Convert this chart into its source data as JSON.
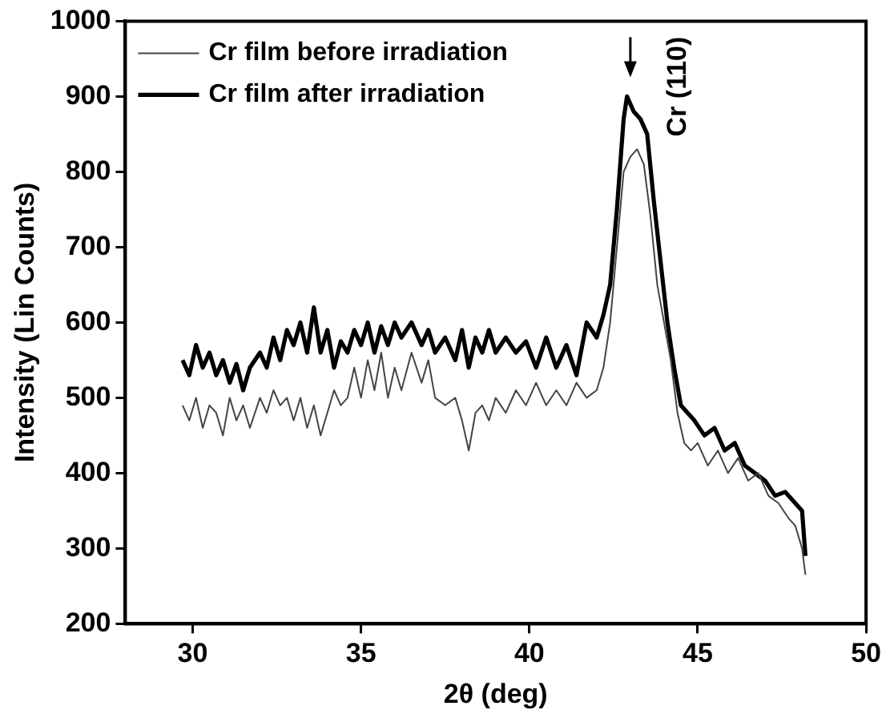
{
  "chart_data": {
    "type": "line",
    "xlabel": "2θ (deg)",
    "ylabel": "Intensity (Lin Counts)",
    "xlim": [
      28,
      50
    ],
    "xticks": [
      30,
      35,
      40,
      45,
      50
    ],
    "ylim": [
      200,
      1000
    ],
    "yticks": [
      200,
      300,
      400,
      500,
      600,
      700,
      800,
      900,
      1000
    ],
    "grid": false,
    "legend": "top left",
    "marker": "none",
    "line_style": "solid",
    "annotations": [
      {
        "text": "Cr (110)",
        "x": 43,
        "y": 900
      }
    ],
    "series": [
      {
        "name": "Cr film before irradiation",
        "color": "#444444",
        "x": [
          29.7,
          29.9,
          30.1,
          30.3,
          30.5,
          30.7,
          30.9,
          31.1,
          31.3,
          31.5,
          31.7,
          32.0,
          32.2,
          32.4,
          32.6,
          32.8,
          33.0,
          33.2,
          33.4,
          33.6,
          33.8,
          34.0,
          34.2,
          34.4,
          34.6,
          34.8,
          35.0,
          35.2,
          35.4,
          35.6,
          35.8,
          36.0,
          36.2,
          36.5,
          36.8,
          37.0,
          37.2,
          37.5,
          37.8,
          38.0,
          38.2,
          38.4,
          38.6,
          38.8,
          39.0,
          39.3,
          39.6,
          39.9,
          40.2,
          40.5,
          40.8,
          41.1,
          41.4,
          41.7,
          42.0,
          42.2,
          42.4,
          42.6,
          42.8,
          43.0,
          43.2,
          43.4,
          43.6,
          43.8,
          44.0,
          44.2,
          44.4,
          44.6,
          44.8,
          45.0,
          45.3,
          45.6,
          45.9,
          46.2,
          46.5,
          46.8,
          47.1,
          47.4,
          47.7,
          47.9,
          48.1,
          48.2
        ],
        "values": [
          490,
          470,
          500,
          460,
          490,
          480,
          450,
          500,
          470,
          490,
          460,
          500,
          480,
          510,
          490,
          500,
          470,
          500,
          460,
          490,
          450,
          480,
          510,
          490,
          500,
          540,
          500,
          550,
          510,
          560,
          500,
          540,
          510,
          560,
          520,
          550,
          500,
          490,
          500,
          470,
          430,
          480,
          490,
          470,
          500,
          480,
          510,
          490,
          520,
          490,
          510,
          490,
          520,
          500,
          510,
          540,
          600,
          700,
          800,
          820,
          830,
          810,
          740,
          650,
          600,
          550,
          480,
          440,
          430,
          440,
          410,
          430,
          400,
          420,
          390,
          400,
          370,
          360,
          340,
          330,
          300,
          265
        ]
      },
      {
        "name": "Cr film after irradiation",
        "color": "#000000",
        "x": [
          29.7,
          29.9,
          30.1,
          30.3,
          30.5,
          30.7,
          30.9,
          31.1,
          31.3,
          31.5,
          31.7,
          32.0,
          32.2,
          32.4,
          32.6,
          32.8,
          33.0,
          33.2,
          33.4,
          33.6,
          33.8,
          34.0,
          34.2,
          34.4,
          34.6,
          34.8,
          35.0,
          35.2,
          35.4,
          35.6,
          35.8,
          36.0,
          36.2,
          36.5,
          36.8,
          37.0,
          37.2,
          37.5,
          37.8,
          38.0,
          38.2,
          38.4,
          38.6,
          38.8,
          39.0,
          39.3,
          39.6,
          39.9,
          40.2,
          40.5,
          40.8,
          41.1,
          41.4,
          41.7,
          42.0,
          42.2,
          42.4,
          42.6,
          42.8,
          42.9,
          43.1,
          43.3,
          43.5,
          43.7,
          43.9,
          44.1,
          44.3,
          44.5,
          44.7,
          44.9,
          45.2,
          45.5,
          45.8,
          46.1,
          46.4,
          46.7,
          47.0,
          47.3,
          47.6,
          47.9,
          48.1,
          48.2
        ],
        "values": [
          550,
          530,
          570,
          540,
          560,
          530,
          550,
          520,
          545,
          510,
          540,
          560,
          540,
          580,
          550,
          590,
          570,
          600,
          560,
          620,
          560,
          590,
          540,
          575,
          560,
          590,
          570,
          600,
          560,
          595,
          570,
          600,
          580,
          600,
          570,
          590,
          560,
          580,
          550,
          590,
          540,
          580,
          560,
          590,
          560,
          580,
          560,
          575,
          540,
          580,
          540,
          570,
          530,
          600,
          580,
          610,
          650,
          750,
          870,
          900,
          880,
          870,
          850,
          760,
          680,
          600,
          540,
          490,
          480,
          470,
          450,
          460,
          430,
          440,
          410,
          400,
          390,
          370,
          375,
          360,
          350,
          290
        ]
      }
    ]
  }
}
